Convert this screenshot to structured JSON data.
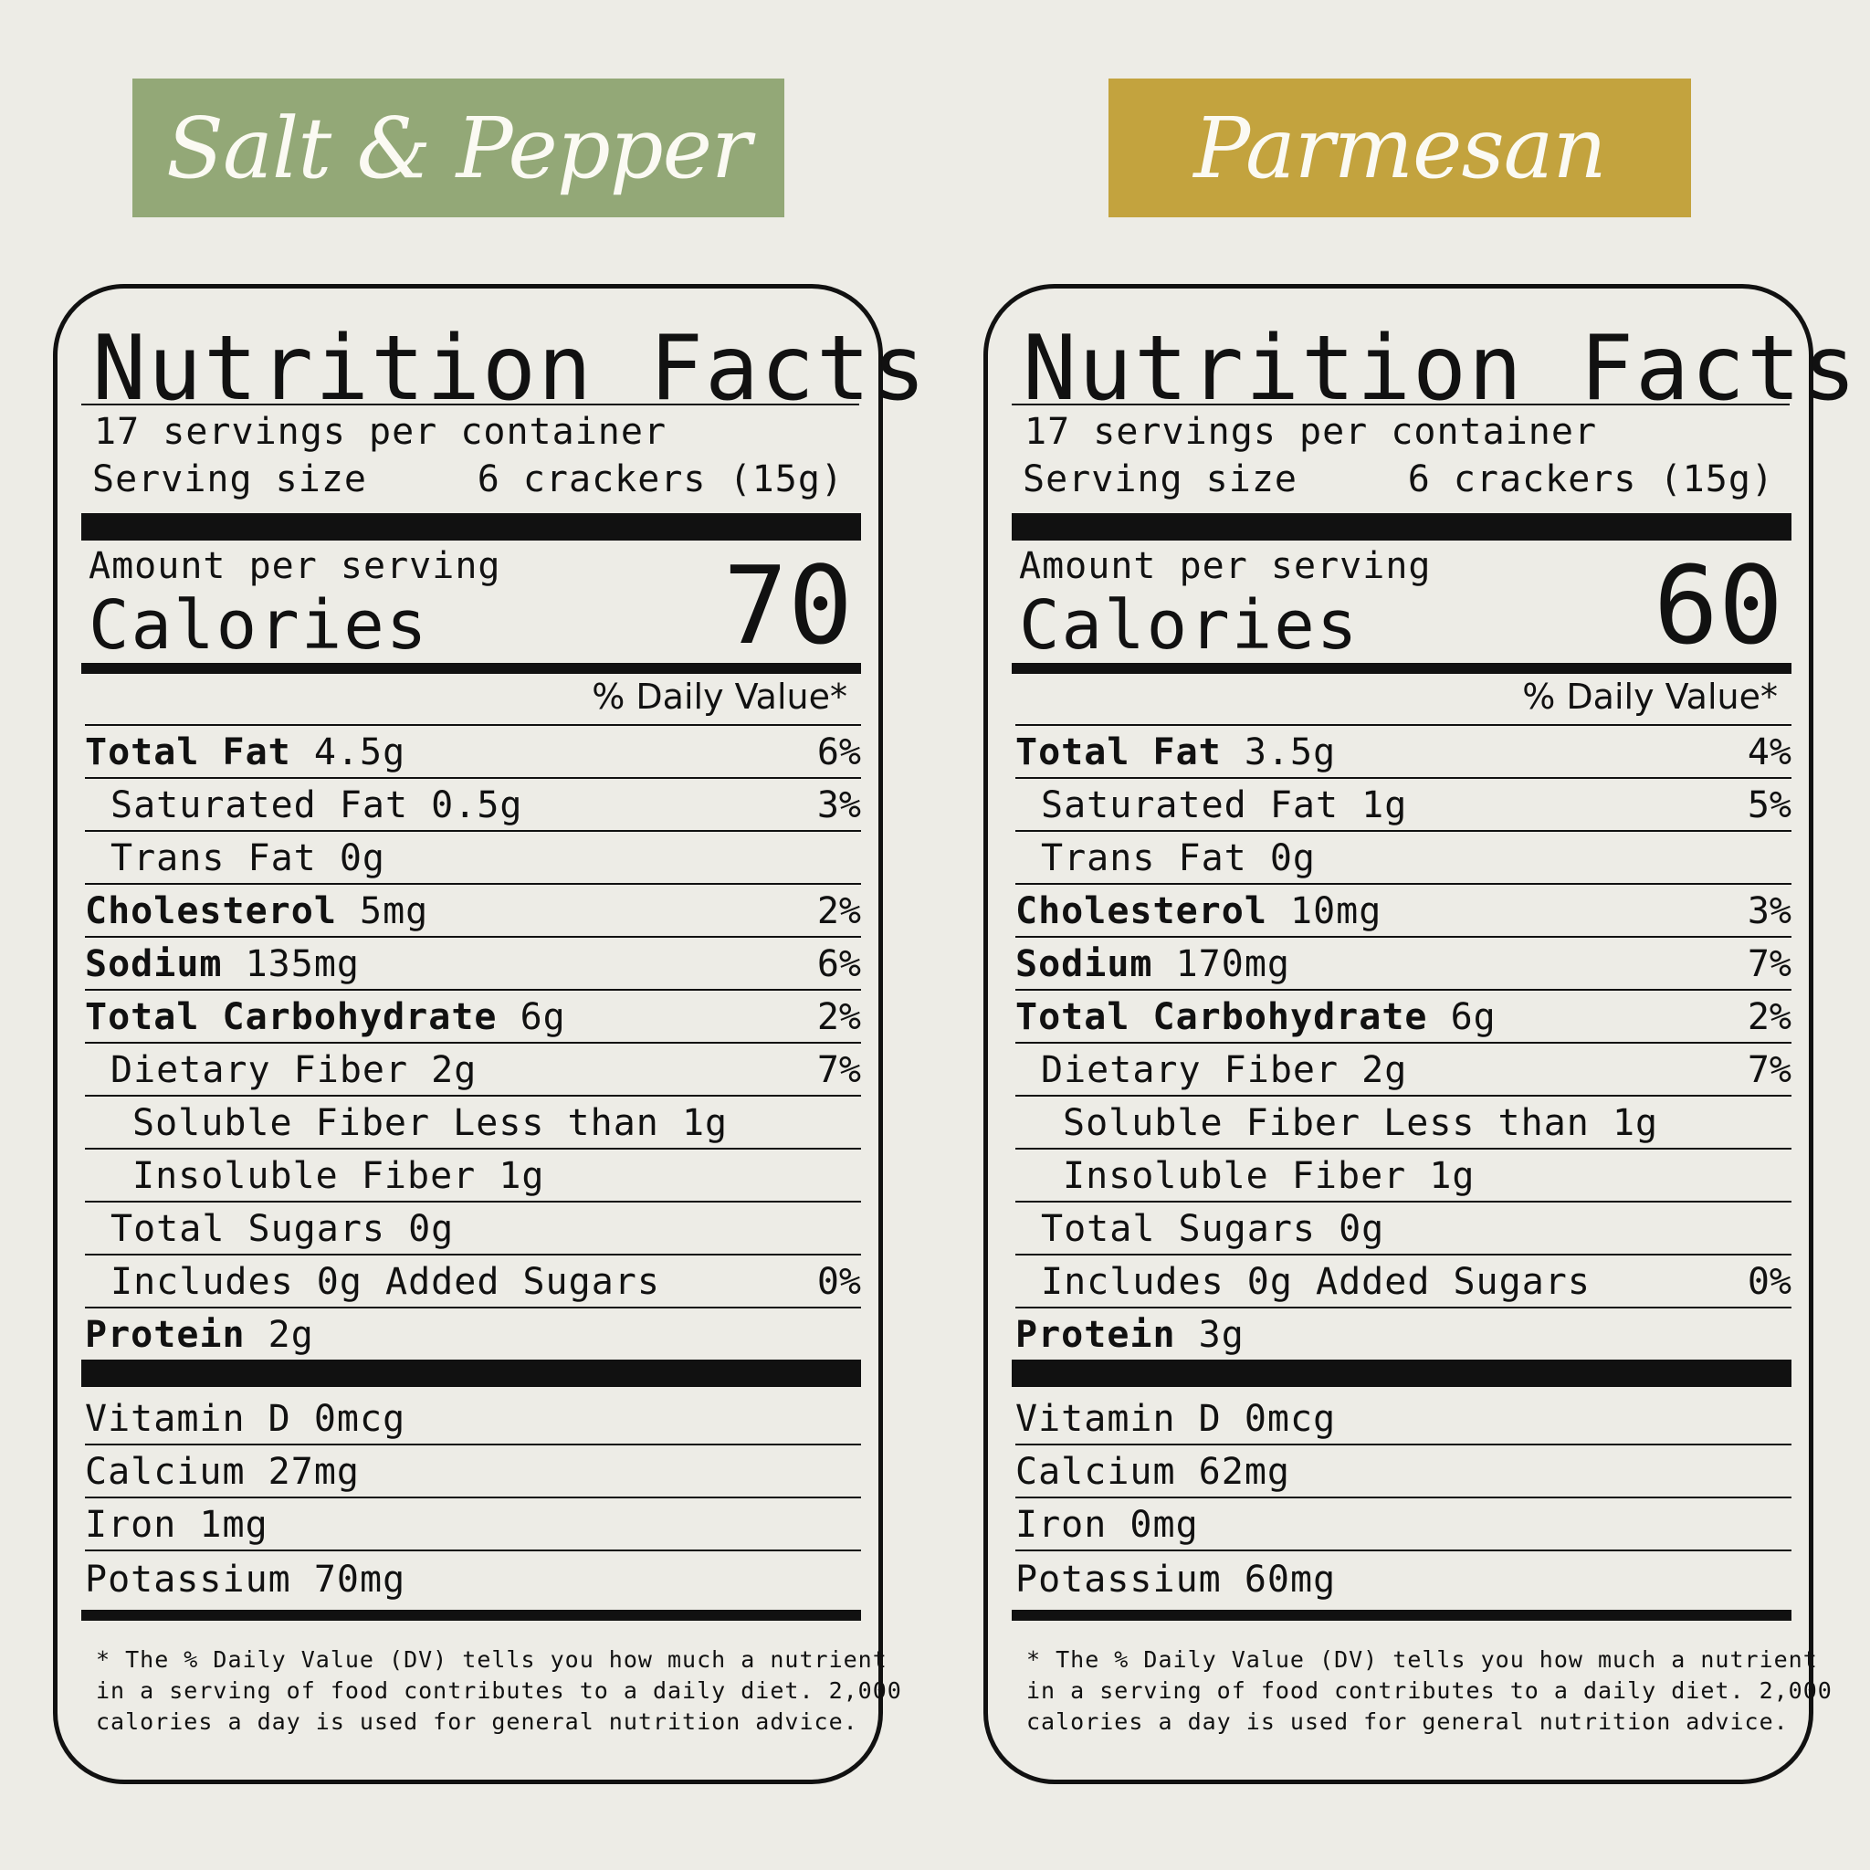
{
  "labels": [
    {
      "flavor": "Salt & Pepper",
      "title": "Nutrition Facts",
      "servings": "17 servings per container",
      "serving_size_label": "Serving size",
      "serving_size_value": "6 crackers (15g)",
      "amount_per_serving": "Amount per serving",
      "calories_label": "Calories",
      "calories_value": "70",
      "dv_header": "% Daily Value*",
      "nutrients": [
        {
          "bold": "Total Fat",
          "rest": " 4.5g",
          "dv": "6%",
          "indent": 0
        },
        {
          "bold": "",
          "rest": "Saturated Fat 0.5g",
          "dv": "3%",
          "indent": 1
        },
        {
          "bold": "",
          "rest": "Trans Fat 0g",
          "dv": "",
          "indent": 1
        },
        {
          "bold": "Cholesterol",
          "rest": " 5mg",
          "dv": "2%",
          "indent": 0
        },
        {
          "bold": "Sodium",
          "rest": " 135mg",
          "dv": "6%",
          "indent": 0
        },
        {
          "bold": "Total Carbohydrate",
          "rest": " 6g",
          "dv": "2%",
          "indent": 0
        },
        {
          "bold": "",
          "rest": "Dietary Fiber 2g",
          "dv": "7%",
          "indent": 1
        },
        {
          "bold": "",
          "rest": "Soluble Fiber Less than 1g",
          "dv": "",
          "indent": 2
        },
        {
          "bold": "",
          "rest": "Insoluble Fiber 1g",
          "dv": "",
          "indent": 2
        },
        {
          "bold": "",
          "rest": "Total Sugars 0g",
          "dv": "",
          "indent": 1
        },
        {
          "bold": "",
          "rest": "Includes 0g Added Sugars",
          "dv": "0%",
          "indent": 1
        },
        {
          "bold": "Protein",
          "rest": " 2g",
          "dv": "",
          "indent": 0
        }
      ],
      "vitamins": [
        "Vitamin D 0mcg",
        "Calcium 27mg",
        "Iron 1mg",
        "Potassium 70mg"
      ],
      "footnote": "* The % Daily Value (DV) tells you how much a nutrient\nin a serving of food contributes to a daily diet. 2,000\ncalories a day is used for general nutrition advice."
    },
    {
      "flavor": "Parmesan",
      "title": "Nutrition Facts",
      "servings": "17 servings per container",
      "serving_size_label": "Serving size",
      "serving_size_value": "6 crackers (15g)",
      "amount_per_serving": "Amount per serving",
      "calories_label": "Calories",
      "calories_value": "60",
      "dv_header": "% Daily Value*",
      "nutrients": [
        {
          "bold": "Total Fat",
          "rest": " 3.5g",
          "dv": "4%",
          "indent": 0
        },
        {
          "bold": "",
          "rest": "Saturated Fat 1g",
          "dv": "5%",
          "indent": 1
        },
        {
          "bold": "",
          "rest": "Trans Fat 0g",
          "dv": "",
          "indent": 1
        },
        {
          "bold": "Cholesterol",
          "rest": " 10mg",
          "dv": "3%",
          "indent": 0
        },
        {
          "bold": "Sodium",
          "rest": " 170mg",
          "dv": "7%",
          "indent": 0
        },
        {
          "bold": "Total Carbohydrate",
          "rest": " 6g",
          "dv": "2%",
          "indent": 0
        },
        {
          "bold": "",
          "rest": "Dietary Fiber 2g",
          "dv": "7%",
          "indent": 1
        },
        {
          "bold": "",
          "rest": "Soluble Fiber Less than 1g",
          "dv": "",
          "indent": 2
        },
        {
          "bold": "",
          "rest": "Insoluble Fiber 1g",
          "dv": "",
          "indent": 2
        },
        {
          "bold": "",
          "rest": "Total Sugars 0g",
          "dv": "",
          "indent": 1
        },
        {
          "bold": "",
          "rest": "Includes 0g Added Sugars",
          "dv": "0%",
          "indent": 1
        },
        {
          "bold": "Protein",
          "rest": " 3g",
          "dv": "",
          "indent": 0
        }
      ],
      "vitamins": [
        "Vitamin D 0mcg",
        "Calcium 62mg",
        "Iron 0mg",
        "Potassium 60mg"
      ],
      "footnote": "* The % Daily Value (DV) tells you how much a nutrient\nin a serving of food contributes to a daily diet. 2,000\ncalories a day is used for general nutrition advice."
    }
  ],
  "colors": {
    "salt_pepper_banner": "#93a877",
    "parmesan_banner": "#c3a33e",
    "background": "#edece6"
  }
}
